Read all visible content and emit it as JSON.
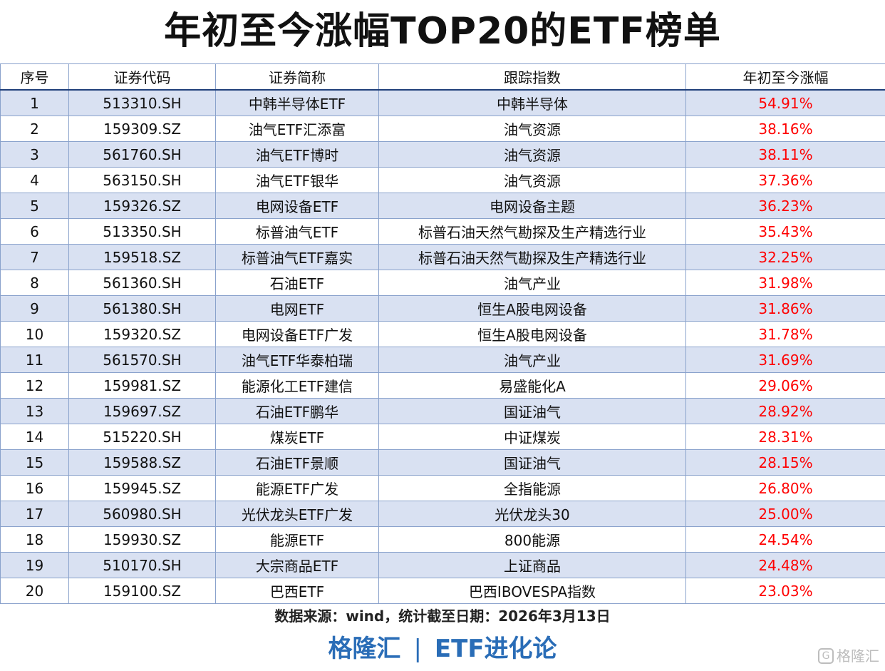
{
  "title": "年初至今涨幅TOP20的ETF榜单",
  "columns": [
    "序号",
    "证券代码",
    "证券简称",
    "跟踪指数",
    "年初至今涨幅"
  ],
  "rows": [
    {
      "no": "1",
      "code": "513310.SH",
      "name": "中韩半导体ETF",
      "index": "中韩半导体",
      "pct": "54.91%"
    },
    {
      "no": "2",
      "code": "159309.SZ",
      "name": "油气ETF汇添富",
      "index": "油气资源",
      "pct": "38.16%"
    },
    {
      "no": "3",
      "code": "561760.SH",
      "name": "油气ETF博时",
      "index": "油气资源",
      "pct": "38.11%"
    },
    {
      "no": "4",
      "code": "563150.SH",
      "name": "油气ETF银华",
      "index": "油气资源",
      "pct": "37.36%"
    },
    {
      "no": "5",
      "code": "159326.SZ",
      "name": "电网设备ETF",
      "index": "电网设备主题",
      "pct": "36.23%"
    },
    {
      "no": "6",
      "code": "513350.SH",
      "name": "标普油气ETF",
      "index": "标普石油天然气勘探及生产精选行业",
      "pct": "35.43%"
    },
    {
      "no": "7",
      "code": "159518.SZ",
      "name": "标普油气ETF嘉实",
      "index": "标普石油天然气勘探及生产精选行业",
      "pct": "32.25%"
    },
    {
      "no": "8",
      "code": "561360.SH",
      "name": "石油ETF",
      "index": "油气产业",
      "pct": "31.98%"
    },
    {
      "no": "9",
      "code": "561380.SH",
      "name": "电网ETF",
      "index": "恒生A股电网设备",
      "pct": "31.86%"
    },
    {
      "no": "10",
      "code": "159320.SZ",
      "name": "电网设备ETF广发",
      "index": "恒生A股电网设备",
      "pct": "31.78%"
    },
    {
      "no": "11",
      "code": "561570.SH",
      "name": "油气ETF华泰柏瑞",
      "index": "油气产业",
      "pct": "31.69%"
    },
    {
      "no": "12",
      "code": "159981.SZ",
      "name": "能源化工ETF建信",
      "index": "易盛能化A",
      "pct": "29.06%"
    },
    {
      "no": "13",
      "code": "159697.SZ",
      "name": "石油ETF鹏华",
      "index": "国证油气",
      "pct": "28.92%"
    },
    {
      "no": "14",
      "code": "515220.SH",
      "name": "煤炭ETF",
      "index": "中证煤炭",
      "pct": "28.31%"
    },
    {
      "no": "15",
      "code": "159588.SZ",
      "name": "石油ETF景顺",
      "index": "国证油气",
      "pct": "28.15%"
    },
    {
      "no": "16",
      "code": "159945.SZ",
      "name": "能源ETF广发",
      "index": "全指能源",
      "pct": "26.80%"
    },
    {
      "no": "17",
      "code": "560980.SH",
      "name": "光伏龙头ETF广发",
      "index": "光伏龙头30",
      "pct": "25.00%"
    },
    {
      "no": "18",
      "code": "159930.SZ",
      "name": "能源ETF",
      "index": "800能源",
      "pct": "24.54%"
    },
    {
      "no": "19",
      "code": "510170.SH",
      "name": "大宗商品ETF",
      "index": "上证商品",
      "pct": "24.48%"
    },
    {
      "no": "20",
      "code": "159100.SZ",
      "name": "巴西ETF",
      "index": "巴西IBOVESPA指数",
      "pct": "23.03%"
    }
  ],
  "source": "数据来源：wind，统计截至日期：2026年3月13日",
  "footer": {
    "brand": "格隆汇",
    "separator": "|",
    "column": "ETF进化论"
  },
  "watermark": {
    "icon": "G",
    "text": "格隆汇"
  },
  "colors": {
    "highlight_row": "#d9e1f2",
    "pct_text": "#ff0000",
    "footer_text": "#2a6db7"
  }
}
